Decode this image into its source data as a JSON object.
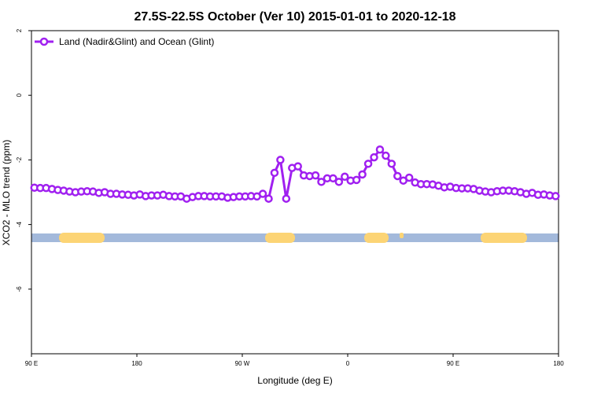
{
  "chart_data": {
    "type": "line",
    "title": "27.5S-22.5S October (Ver 10)   2015-01-01 to 2020-12-18",
    "xlabel": "Longitude (deg E)",
    "ylabel": "XCO2 - MLO trend (ppm)",
    "xlim": [
      90,
      540
    ],
    "xticks": [
      {
        "value": 90,
        "label": "90 E"
      },
      180,
      {
        "value": 270,
        "label": "90 W"
      },
      {
        "value": 360,
        "label": "0"
      },
      {
        "value": 450,
        "label": "90 E"
      },
      {
        "value": 540,
        "label": "180"
      }
    ],
    "ylim": [
      -8,
      2
    ],
    "yticks": [
      -6,
      -4,
      -2,
      0,
      2
    ],
    "legend": "top-left",
    "x": [
      92.5,
      97.5,
      102.5,
      107.5,
      112.5,
      117.5,
      122.5,
      127.5,
      132.5,
      137.5,
      142.5,
      147.5,
      152.5,
      157.5,
      162.5,
      167.5,
      172.5,
      177.5,
      182.5,
      187.5,
      192.5,
      197.5,
      202.5,
      207.5,
      212.5,
      217.5,
      222.5,
      227.5,
      232.5,
      237.5,
      242.5,
      247.5,
      252.5,
      257.5,
      262.5,
      267.5,
      272.5,
      277.5,
      282.5,
      287.5,
      292.5,
      297.5,
      302.5,
      307.5,
      312.5,
      317.5,
      322.5,
      327.5,
      332.5,
      337.5,
      342.5,
      347.5,
      352.5,
      357.5,
      362.5,
      367.5,
      372.5,
      377.5,
      382.5,
      387.5,
      392.5,
      397.5,
      402.5,
      407.5,
      412.5,
      417.5,
      422.5,
      427.5,
      432.5,
      437.5,
      442.5,
      447.5,
      452.5,
      457.5,
      462.5,
      467.5,
      472.5,
      477.5,
      482.5,
      487.5,
      492.5,
      497.5,
      502.5,
      507.5,
      512.5,
      517.5,
      522.5,
      527.5,
      532.5,
      537.5
    ],
    "series": [
      {
        "name": "Land (Nadir&Glint) and Ocean (Glint)",
        "color": "#a020f0",
        "values": [
          -2.86,
          -2.87,
          -2.87,
          -2.9,
          -2.93,
          -2.95,
          -2.98,
          -3.0,
          -2.98,
          -2.97,
          -2.98,
          -3.02,
          -3.0,
          -3.05,
          -3.05,
          -3.07,
          -3.08,
          -3.1,
          -3.07,
          -3.12,
          -3.1,
          -3.1,
          -3.08,
          -3.12,
          -3.13,
          -3.13,
          -3.2,
          -3.15,
          -3.12,
          -3.12,
          -3.13,
          -3.13,
          -3.13,
          -3.17,
          -3.15,
          -3.13,
          -3.13,
          -3.12,
          -3.13,
          -3.05,
          -3.2,
          -2.4,
          -2.0,
          -3.2,
          -2.25,
          -2.2,
          -2.48,
          -2.5,
          -2.48,
          -2.68,
          -2.57,
          -2.57,
          -2.68,
          -2.52,
          -2.64,
          -2.62,
          -2.45,
          -2.12,
          -1.92,
          -1.68,
          -1.87,
          -2.12,
          -2.5,
          -2.64,
          -2.55,
          -2.7,
          -2.75,
          -2.75,
          -2.76,
          -2.8,
          -2.85,
          -2.83,
          -2.87,
          -2.88,
          -2.88,
          -2.9,
          -2.95,
          -2.98,
          -3.0,
          -2.97,
          -2.95,
          -2.95,
          -2.97,
          -3.0,
          -3.05,
          -3.02,
          -3.08,
          -3.07,
          -3.1,
          -3.12
        ]
      }
    ]
  }
}
